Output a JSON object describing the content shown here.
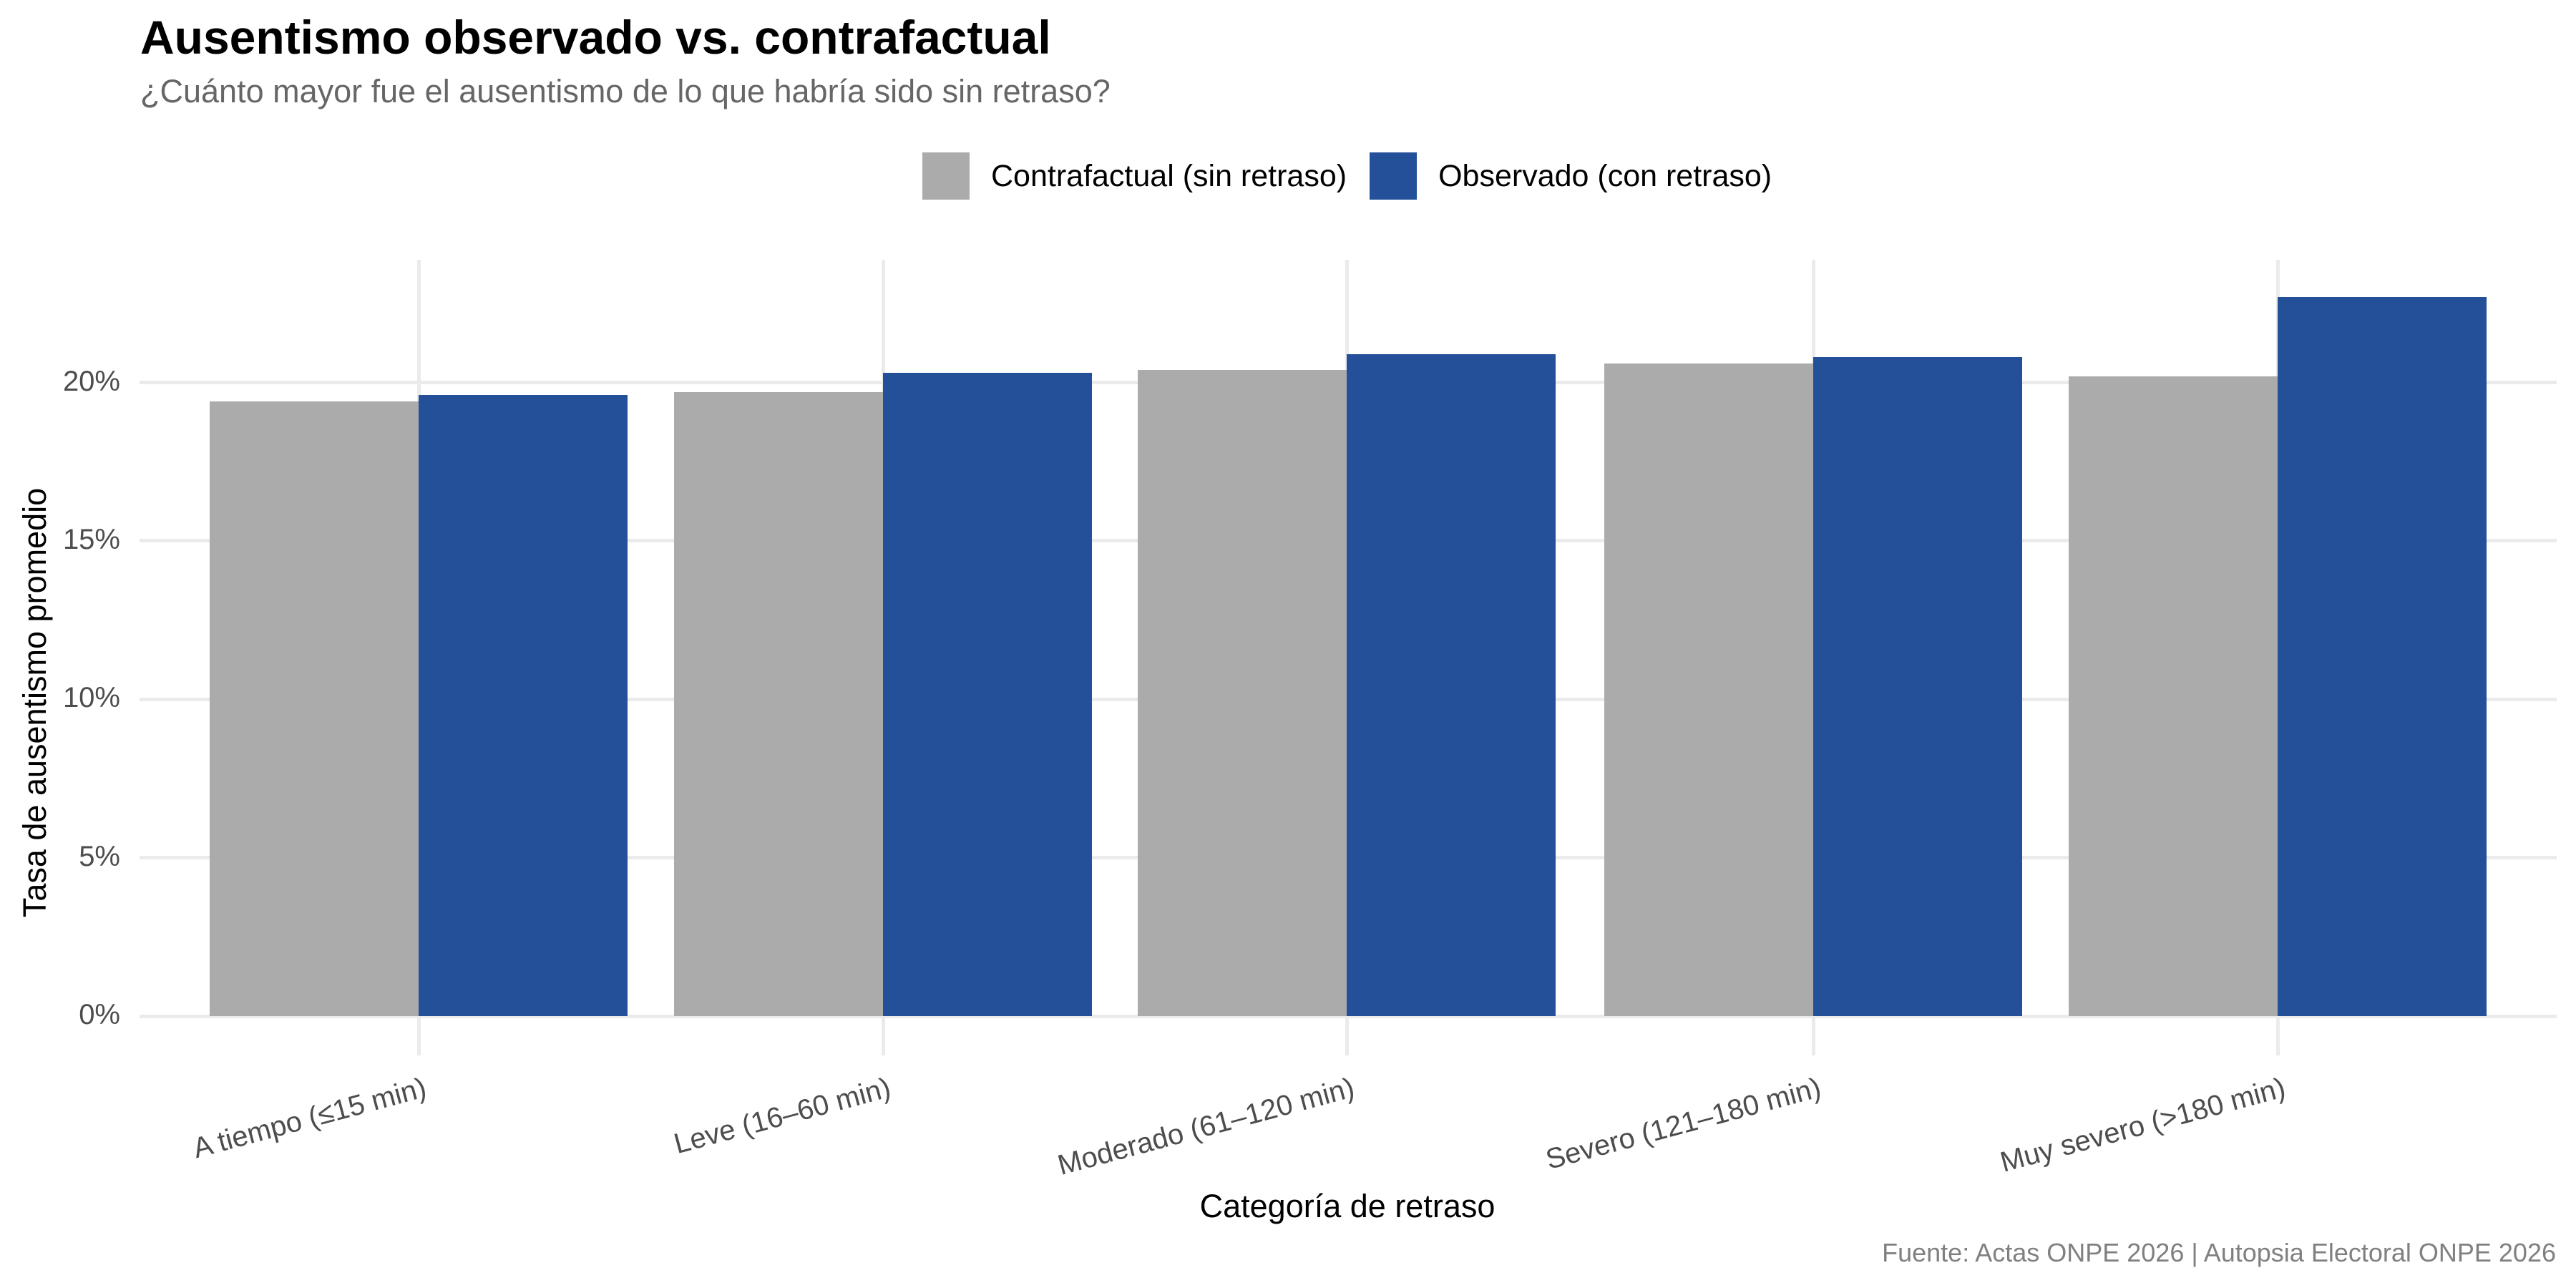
{
  "title": "Ausentismo observado vs. contrafactual",
  "subtitle": "¿Cuánto mayor fue el ausentismo de lo que habría sido sin retraso?",
  "legend": {
    "items": [
      {
        "label": "Contrafactual (sin retraso)",
        "color": "#ababab"
      },
      {
        "label": "Observado (con retraso)",
        "color": "#24509a"
      }
    ]
  },
  "axes": {
    "y_label": "Tasa de ausentismo promedio",
    "x_label": "Categoría de retraso",
    "y_ticks": [
      "0%",
      "5%",
      "10%",
      "15%",
      "20%"
    ]
  },
  "caption": "Fuente: Actas ONPE 2026 | Autopsia Electoral ONPE 2026",
  "colors": {
    "contrafactual": "#ababab",
    "observado": "#24509a",
    "grid": "#ebebeb",
    "tick_text": "#4d4d4d"
  },
  "chart_data": {
    "type": "bar",
    "title": "Ausentismo observado vs. contrafactual",
    "subtitle": "¿Cuánto mayor fue el ausentismo de lo que habría sido sin retraso?",
    "xlabel": "Categoría de retraso",
    "ylabel": "Tasa de ausentismo promedio",
    "categories": [
      "A tiempo (≤15 min)",
      "Leve (16–60 min)",
      "Moderado (61–120 min)",
      "Severo (121–180 min)",
      "Muy severo (>180 min)"
    ],
    "series": [
      {
        "name": "Contrafactual (sin retraso)",
        "color": "#ababab",
        "values": [
          19.4,
          19.7,
          20.4,
          20.6,
          20.2
        ]
      },
      {
        "name": "Observado (con retraso)",
        "color": "#24509a",
        "values": [
          19.6,
          20.3,
          20.9,
          20.8,
          22.7
        ]
      }
    ],
    "unit": "%",
    "ylim": [
      0,
      24.6
    ],
    "y_ticks": [
      0,
      5,
      10,
      15,
      20
    ],
    "y_tick_labels": [
      "0%",
      "5%",
      "10%",
      "15%",
      "20%"
    ],
    "grid": true,
    "legend_position": "top",
    "bar_mode": "grouped",
    "x_tick_rotation": 15,
    "caption": "Fuente: Actas ONPE 2026 | Autopsia Electoral ONPE 2026"
  }
}
